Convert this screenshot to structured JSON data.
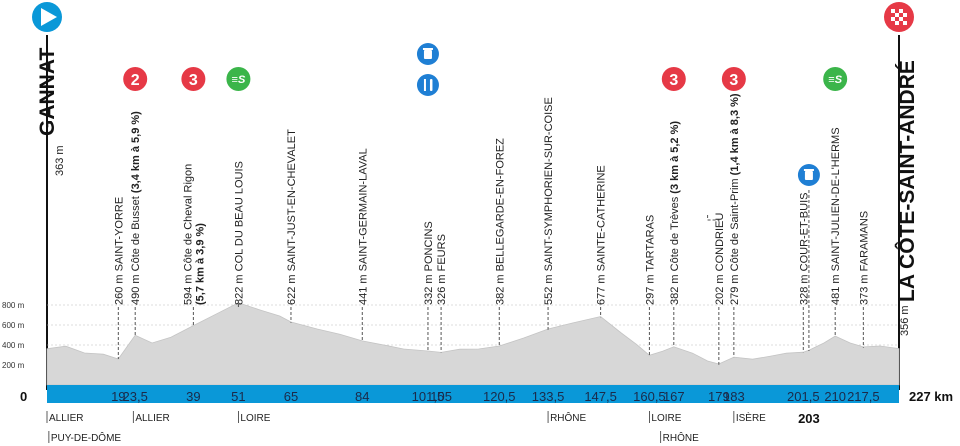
{
  "start": {
    "town": "GANNAT",
    "altitude": "363 m"
  },
  "finish": {
    "town": "LA CÔTE-SAINT-ANDRÉ",
    "altitude": "356 m",
    "distance": "227 km"
  },
  "axis": {
    "zero": "0",
    "elevation_ticks": [
      "800 m",
      "600 m",
      "400 m",
      "200 m"
    ]
  },
  "points": [
    {
      "km": 19,
      "label": "19",
      "parts": [
        {
          "t": "260 m SAINT-YORRE"
        }
      ]
    },
    {
      "km": 23.5,
      "label": "23,5",
      "parts": [
        {
          "t": "490 m Côte de Busset "
        },
        {
          "t": "(3,4 km à 5,9 %)",
          "b": true
        }
      ],
      "badge": "2"
    },
    {
      "km": 39,
      "label": "39",
      "parts": [
        {
          "t": "594 m Côte de Cheval Rigon"
        }
      ],
      "parts2": [
        {
          "t": "(5,7 km à 3,9 %)",
          "b": true
        }
      ],
      "badge": "3"
    },
    {
      "km": 51,
      "label": "51",
      "parts": [
        {
          "t": "822 m COL DU BEAU LOUIS"
        }
      ],
      "badge": "sprint"
    },
    {
      "km": 65,
      "label": "65",
      "parts": [
        {
          "t": "622 m SAINT-JUST-EN-CHEVALET"
        }
      ]
    },
    {
      "km": 84,
      "label": "84",
      "parts": [
        {
          "t": "441 m SAINT-GERMAIN-LAVAL"
        }
      ]
    },
    {
      "km": 101.5,
      "label": "101,5",
      "parts": [
        {
          "t": "332 m PONCINS"
        }
      ],
      "icons": [
        "bin",
        "feed"
      ]
    },
    {
      "km": 105,
      "label": "105",
      "parts": [
        {
          "t": "326 m FEURS"
        }
      ]
    },
    {
      "km": 120.5,
      "label": "120,5",
      "parts": [
        {
          "t": "382 m BELLEGARDE-EN-FOREZ"
        }
      ]
    },
    {
      "km": 133.5,
      "label": "133,5",
      "parts": [
        {
          "t": "552 m SAINT-SYMPHORIEN-SUR-COISE"
        }
      ]
    },
    {
      "km": 147.5,
      "label": "147,5",
      "parts": [
        {
          "t": "677 m SAINTE-CATHERINE"
        }
      ]
    },
    {
      "km": 160.5,
      "label": "160,5",
      "parts": [
        {
          "t": "297 m TARTARAS"
        }
      ]
    },
    {
      "km": 167,
      "label": "167",
      "parts": [
        {
          "t": "382 m Côte de Trèves "
        },
        {
          "t": "(3 km à 5,2 %)",
          "b": true
        }
      ],
      "badge": "3"
    },
    {
      "km": 179,
      "label": "179",
      "parts": [
        {
          "t": "202 m CONDRIEU"
        }
      ]
    },
    {
      "km": 183,
      "label": "183",
      "parts": [
        {
          "t": "279 m Côte de Saint-Prim "
        },
        {
          "t": "(1,4 km à 8,3 %)",
          "b": true
        }
      ],
      "badge": "3"
    },
    {
      "km": 201.5,
      "label": "201,5",
      "parts": [
        {
          "t": "328 m COUR-ET-BUIS"
        }
      ]
    },
    {
      "km": 203,
      "label": "203",
      "icons": [
        "bin"
      ]
    },
    {
      "km": 210,
      "label": "210",
      "parts": [
        {
          "t": "481 m SAINT-JULIEN-DE-L'HERMS"
        }
      ],
      "badge": "sprint"
    },
    {
      "km": 217.5,
      "label": "217,5",
      "parts": [
        {
          "t": "373 m FARAMANS"
        }
      ]
    }
  ],
  "regions": [
    {
      "name": "ALLIER",
      "km": 0,
      "row": 1
    },
    {
      "name": "PUY-DE-DÔME",
      "km": 0.5,
      "row": 2
    },
    {
      "name": "ALLIER",
      "km": 23,
      "row": 1
    },
    {
      "name": "LOIRE",
      "km": 51,
      "row": 1
    },
    {
      "name": "RHÔNE",
      "km": 133.5,
      "row": 1
    },
    {
      "name": "LOIRE",
      "km": 160.5,
      "row": 1
    },
    {
      "name": "RHÔNE",
      "km": 163.5,
      "row": 2
    },
    {
      "name": "ISÈRE",
      "km": 183,
      "row": 1
    }
  ],
  "chart_data": {
    "type": "area",
    "x": [
      0,
      5,
      10,
      15,
      19,
      23.5,
      28,
      33,
      39,
      45,
      51,
      57,
      62,
      65,
      72,
      78,
      84,
      90,
      95,
      101.5,
      105,
      110,
      115,
      120.5,
      127,
      133.5,
      140,
      147.5,
      153,
      157,
      160.5,
      164,
      167,
      172,
      176,
      179,
      183,
      188,
      193,
      197,
      201.5,
      203,
      207,
      210,
      214,
      217.5,
      222,
      227
    ],
    "y": [
      363,
      380,
      320,
      300,
      260,
      490,
      420,
      470,
      594,
      700,
      822,
      740,
      690,
      622,
      560,
      500,
      441,
      390,
      360,
      332,
      326,
      350,
      360,
      382,
      470,
      552,
      620,
      677,
      520,
      400,
      297,
      330,
      382,
      310,
      240,
      202,
      279,
      250,
      290,
      310,
      328,
      340,
      420,
      481,
      420,
      373,
      390,
      356
    ],
    "xlim": [
      0,
      227
    ],
    "ylim": [
      0,
      1000
    ],
    "grid": true
  },
  "colors": {
    "sky": "#0a98d8",
    "profile": "#d7d7d7",
    "climb": "#e63946",
    "sprint": "#3bb54a",
    "icon": "#1f7fd4"
  }
}
